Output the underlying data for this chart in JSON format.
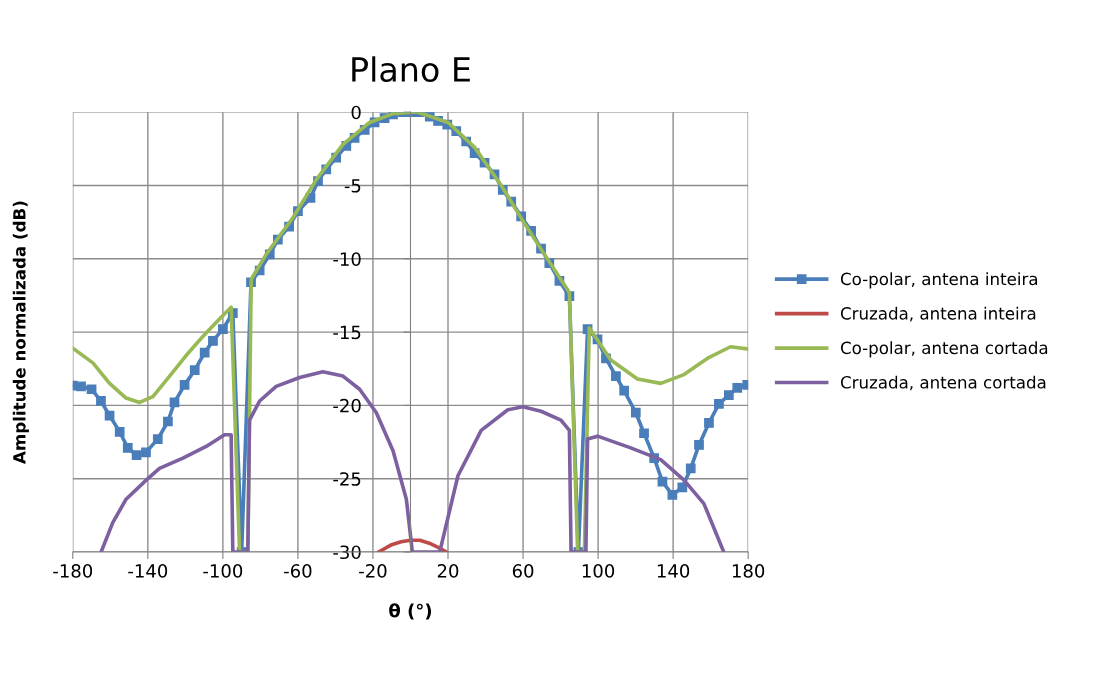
{
  "chart_data": {
    "type": "line",
    "title": "Plano E",
    "xlabel": "θ (°)",
    "ylabel": "Amplitude normalizada (dB)",
    "xlim": [
      -180,
      180
    ],
    "xticks": [
      -180,
      -140,
      -100,
      -60,
      -20,
      20,
      60,
      100,
      140,
      180
    ],
    "ylim": [
      -30,
      0
    ],
    "yticks": [
      0,
      -5,
      -10,
      -15,
      -20,
      -25,
      -30
    ],
    "grid": true,
    "legend": "right",
    "line_style": "solid",
    "series": [
      {
        "name": "Co-polar, antena inteira",
        "color": "#4a7ebb",
        "marker": "square",
        "x": [
          -180,
          -175.6,
          -170,
          -165,
          -160.4,
          -155,
          -150.7,
          -146,
          -141,
          -134.7,
          -129.3,
          -125.8,
          -120.4,
          -115,
          -109.7,
          -105.3,
          -100,
          -94.7,
          -90,
          -85,
          -80.4,
          -75,
          -70.7,
          -64.7,
          -60,
          -53.3,
          -49.3,
          -44.9,
          -39.6,
          -34.2,
          -29.8,
          -24.4,
          -19.1,
          -13.8,
          -9.3,
          -4,
          0.4,
          4.9,
          10.3,
          14.7,
          19.6,
          24.4,
          29.7,
          34.2,
          39.5,
          44.8,
          49.2,
          53.7,
          59,
          64.3,
          69.6,
          74,
          79.4,
          84.7,
          89.5,
          94.4,
          99.7,
          104.2,
          109.5,
          113.9,
          120.1,
          124.5,
          129.9,
          134.3,
          139.6,
          144.9,
          149.4,
          153.8,
          159.1,
          164.4,
          169.7,
          174.2,
          179.5
        ],
        "values": [
          -18.65,
          -18.7,
          -18.9,
          -19.7,
          -20.7,
          -21.8,
          -22.9,
          -23.4,
          -23.2,
          -22.3,
          -21.1,
          -19.8,
          -18.6,
          -17.6,
          -16.4,
          -15.6,
          -14.8,
          -13.7,
          -30,
          -11.6,
          -10.8,
          -9.7,
          -8.7,
          -7.8,
          -6.75,
          -5.85,
          -4.7,
          -3.9,
          -3.1,
          -2.3,
          -1.75,
          -1.2,
          -0.7,
          -0.4,
          -0.15,
          0,
          0,
          0,
          -0.3,
          -0.6,
          -0.85,
          -1.3,
          -2.0,
          -2.8,
          -3.45,
          -4.25,
          -5.3,
          -6.1,
          -7.1,
          -8.1,
          -9.3,
          -10.3,
          -11.5,
          -12.55,
          -30,
          -14.8,
          -15.5,
          -16.8,
          -18.0,
          -19.0,
          -20.5,
          -21.9,
          -23.6,
          -25.2,
          -26.1,
          -25.6,
          -24.3,
          -22.7,
          -21.2,
          -19.9,
          -19.3,
          -18.8,
          -18.6
        ]
      },
      {
        "name": "Cruzada, antena inteira",
        "color": "#be4b48",
        "x": [
          -17,
          -10,
          -5,
          0,
          5,
          10,
          15,
          19
        ],
        "values": [
          -30,
          -29.5,
          -29.3,
          -29.2,
          -29.2,
          -29.4,
          -29.7,
          -30
        ]
      },
      {
        "name": "Co-polar, antena cortada",
        "color": "#98b954",
        "x": [
          -180,
          -169.3,
          -160.4,
          -151.6,
          -144.4,
          -137.3,
          -128.4,
          -119.6,
          -110.7,
          -101.8,
          -95.6,
          -91.1,
          -86.7,
          -84.9,
          -76.9,
          -62.7,
          -50.2,
          -36,
          -21.8,
          -9.3,
          1.3,
          4,
          20,
          34.2,
          48.4,
          60.8,
          71.4,
          84.7,
          89.1,
          92.7,
          95.3,
          106.8,
          121,
          133.4,
          145.8,
          158.2,
          170.6,
          179.5
        ],
        "values": [
          -16.1,
          -17.1,
          -18.5,
          -19.5,
          -19.8,
          -19.4,
          -18.0,
          -16.6,
          -15.3,
          -14.1,
          -13.3,
          -30,
          -30,
          -11.4,
          -9.7,
          -7.2,
          -4.6,
          -2.2,
          -0.7,
          -0.1,
          0,
          0,
          -0.7,
          -2.4,
          -5.0,
          -7.6,
          -9.7,
          -12.3,
          -30,
          -30,
          -14.7,
          -16.9,
          -18.2,
          -18.5,
          -17.9,
          -16.8,
          -16.0,
          -16.15
        ]
      },
      {
        "name": "Cruzada, antena cortada",
        "color": "#7d60a0",
        "x": [
          -164.9,
          -158.7,
          -151.6,
          -140.9,
          -133.8,
          -121.3,
          -108.9,
          -99.1,
          -95.6,
          -94.7,
          -86.7,
          -85.8,
          -80.4,
          -71.6,
          -59.1,
          -46.7,
          -36,
          -27.1,
          -18.2,
          -9.3,
          -2.2,
          1,
          15.6,
          25.3,
          37.7,
          51.9,
          59.9,
          69.6,
          80.2,
          84.7,
          85.6,
          93.5,
          94.4,
          99.7,
          117.4,
          133.4,
          145.8,
          156.4,
          167
        ],
        "values": [
          -30,
          -28,
          -26.4,
          -25.1,
          -24.3,
          -23.6,
          -22.8,
          -22.0,
          -22.0,
          -30,
          -30,
          -21.0,
          -19.7,
          -18.7,
          -18.1,
          -17.7,
          -18.0,
          -18.9,
          -20.5,
          -23.1,
          -26.4,
          -30,
          -30,
          -24.8,
          -21.7,
          -20.3,
          -20.1,
          -20.4,
          -21.0,
          -21.7,
          -30,
          -30,
          -22.3,
          -22.1,
          -22.9,
          -23.7,
          -25.1,
          -26.7,
          -30
        ]
      }
    ]
  }
}
